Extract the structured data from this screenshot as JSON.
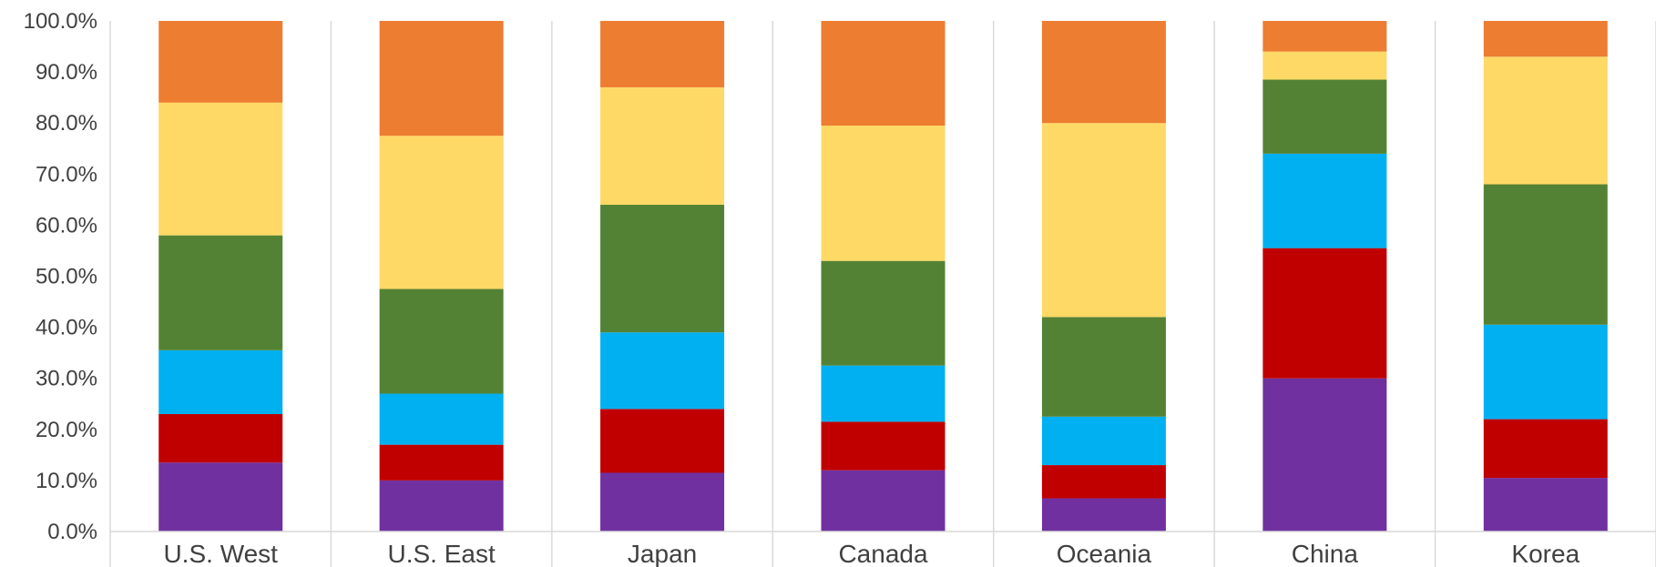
{
  "chart_data": {
    "type": "bar",
    "stacked": true,
    "percent": true,
    "categories": [
      "U.S. West",
      "U.S. East",
      "Japan",
      "Canada",
      "Oceania",
      "China",
      "Korea"
    ],
    "ylim": [
      0,
      100
    ],
    "yticks": [
      "0.0%",
      "10.0%",
      "20.0%",
      "30.0%",
      "40.0%",
      "50.0%",
      "60.0%",
      "70.0%",
      "80.0%",
      "90.0%",
      "100.0%"
    ],
    "grid": false,
    "legend": "none",
    "series": [
      {
        "color": "#7030a0",
        "values": [
          13.5,
          10.0,
          11.5,
          12.0,
          6.5,
          30.0,
          10.5
        ]
      },
      {
        "color": "#c00000",
        "values": [
          9.5,
          7.0,
          12.5,
          9.5,
          6.5,
          25.5,
          11.5
        ]
      },
      {
        "color": "#00b0f0",
        "values": [
          12.5,
          10.0,
          15.0,
          11.0,
          9.5,
          18.5,
          18.5
        ]
      },
      {
        "color": "#548235",
        "values": [
          22.5,
          20.5,
          25.0,
          20.5,
          19.5,
          14.5,
          27.5
        ]
      },
      {
        "color": "#ffd966",
        "values": [
          26.0,
          30.0,
          23.0,
          26.5,
          38.0,
          5.5,
          25.0
        ]
      },
      {
        "color": "#ed7d31",
        "values": [
          16.0,
          22.5,
          13.0,
          20.5,
          20.0,
          6.0,
          7.0
        ]
      }
    ]
  }
}
